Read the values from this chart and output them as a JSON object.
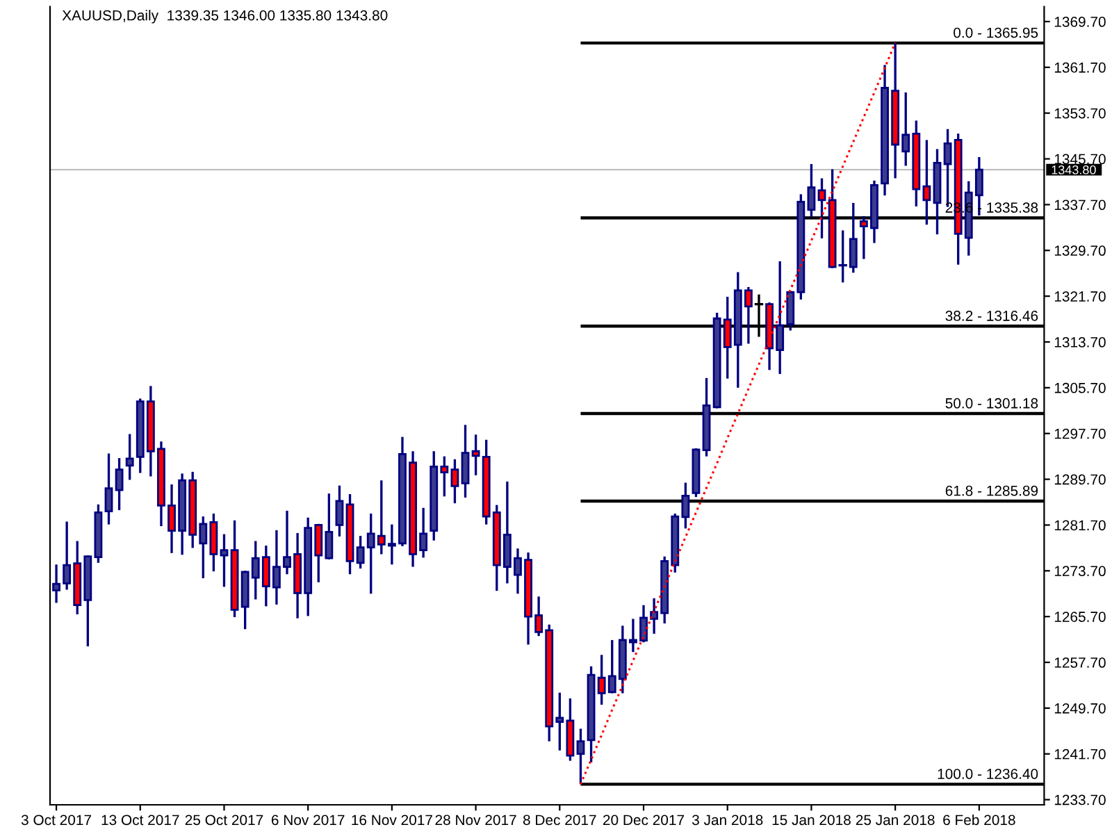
{
  "chart_data": {
    "type": "candlestick",
    "title": "XAUUSD,Daily  1339.35 1346.00 1335.80 1343.80",
    "categories": [
      "3 Oct 2017",
      null,
      null,
      null,
      null,
      null,
      null,
      null,
      "13 Oct 2017",
      null,
      null,
      null,
      null,
      null,
      null,
      null,
      "25 Oct 2017",
      null,
      null,
      null,
      null,
      null,
      null,
      null,
      "6 Nov 2017",
      null,
      null,
      null,
      null,
      null,
      null,
      null,
      "16 Nov 2017",
      null,
      null,
      null,
      null,
      null,
      null,
      null,
      "28 Nov 2017",
      null,
      null,
      null,
      null,
      null,
      null,
      null,
      "8 Dec 2017",
      null,
      null,
      null,
      null,
      null,
      null,
      null,
      "20 Dec 2017",
      null,
      null,
      null,
      null,
      null,
      null,
      null,
      "3 Jan 2018",
      null,
      null,
      null,
      null,
      null,
      null,
      null,
      "15 Jan 2018",
      null,
      null,
      null,
      null,
      null,
      null,
      null,
      "25 Jan 2018",
      null,
      null,
      null,
      null,
      null,
      null,
      null,
      "6 Feb 2018"
    ],
    "series": [
      {
        "color": "#000080",
        "colors": [
          "#3b3b8f",
          "#3b3b8f",
          "#ff0000",
          "#3b3b8f",
          "#3b3b8f",
          "#3b3b8f",
          "#3b3b8f",
          "#3b3b8f",
          "#3b3b8f",
          "#ff0000",
          "#ff0000",
          "#ff0000",
          "#3b3b8f",
          "#ff0000",
          "#3b3b8f",
          "#ff0000",
          "#3b3b8f",
          "#ff0000",
          "#3b3b8f",
          "#3b3b8f",
          "#ff0000",
          "#3b3b8f",
          "#3b3b8f",
          "#ff0000",
          "#3b3b8f",
          "#ff0000",
          "#3b3b8f",
          "#3b3b8f",
          "#ff0000",
          "#3b3b8f",
          "#3b3b8f",
          "#ff0000",
          "#3b3b8f",
          "#3b3b8f",
          "#ff0000",
          "#3b3b8f",
          "#3b3b8f",
          "#ff0000",
          "#ff0000",
          "#3b3b8f",
          "#ff0000",
          "#ff0000",
          "#ff0000",
          "#3b3b8f",
          "#3b3b8f",
          "#ff0000",
          "#ff0000",
          "#ff0000",
          "#3b3b8f",
          "#ff0000",
          "#3b3b8f",
          "#3b3b8f",
          "#ff0000",
          "#3b3b8f",
          "#3b3b8f",
          "#3b3b8f",
          "#3b3b8f",
          "#3b3b8f",
          "#3b3b8f",
          "#3b3b8f",
          "#3b3b8f",
          "#3b3b8f",
          "#3b3b8f",
          "#3b3b8f",
          "#ff0000",
          "#3b3b8f",
          "#ff0000",
          "#000000",
          "#ff0000",
          "#3b3b8f",
          "#3b3b8f",
          "#3b3b8f",
          "#3b3b8f",
          "#ff0000",
          "#ff0000",
          "#000080",
          "#3b3b8f",
          "#ff0000",
          "#3b3b8f",
          "#3b3b8f",
          "#ff0000",
          "#3b3b8f",
          "#ff0000",
          "#ff0000",
          "#3b3b8f",
          "#3b3b8f",
          "#ff0000",
          "#3b3b8f",
          "#3b3b8f"
        ],
        "ohlc": [
          [
            1270.3,
            1274.8,
            1268.1,
            1271.4
          ],
          [
            1271.5,
            1282.3,
            1270.4,
            1274.7
          ],
          [
            1275.0,
            1278.9,
            1266.1,
            1267.7
          ],
          [
            1268.6,
            1276.4,
            1260.5,
            1276.2
          ],
          [
            1276.1,
            1285.3,
            1275.1,
            1283.9
          ],
          [
            1284.1,
            1294.2,
            1281.8,
            1288.1
          ],
          [
            1287.8,
            1293.4,
            1284.3,
            1291.4
          ],
          [
            1292.1,
            1297.6,
            1289.6,
            1293.3
          ],
          [
            1293.6,
            1303.8,
            1290.8,
            1303.3
          ],
          [
            1303.3,
            1306.0,
            1290.2,
            1294.6
          ],
          [
            1295.0,
            1296.3,
            1281.5,
            1285.1
          ],
          [
            1285.1,
            1288.8,
            1276.8,
            1280.7
          ],
          [
            1280.7,
            1290.7,
            1276.5,
            1289.5
          ],
          [
            1289.5,
            1291.0,
            1277.7,
            1280.0
          ],
          [
            1278.5,
            1283.2,
            1272.4,
            1281.9
          ],
          [
            1282.2,
            1283.7,
            1273.6,
            1276.6
          ],
          [
            1276.4,
            1280.1,
            1270.9,
            1277.3
          ],
          [
            1277.3,
            1282.5,
            1265.6,
            1266.9
          ],
          [
            1267.4,
            1273.7,
            1263.5,
            1273.5
          ],
          [
            1272.5,
            1278.9,
            1268.7,
            1275.9
          ],
          [
            1276.1,
            1278.1,
            1267.5,
            1271.0
          ],
          [
            1270.8,
            1280.8,
            1267.8,
            1274.4
          ],
          [
            1274.4,
            1284.2,
            1273.1,
            1276.1
          ],
          [
            1276.6,
            1280.3,
            1265.4,
            1269.8
          ],
          [
            1269.8,
            1283.0,
            1265.8,
            1281.2
          ],
          [
            1281.7,
            1281.9,
            1271.7,
            1276.4
          ],
          [
            1275.9,
            1287.2,
            1275.7,
            1280.5
          ],
          [
            1281.7,
            1288.6,
            1279.7,
            1285.9
          ],
          [
            1285.3,
            1287.1,
            1273.1,
            1275.4
          ],
          [
            1275.1,
            1279.8,
            1274.1,
            1277.8
          ],
          [
            1277.8,
            1283.7,
            1269.7,
            1280.2
          ],
          [
            1279.8,
            1289.5,
            1276.6,
            1278.3
          ],
          [
            1278.1,
            1281.8,
            1274.8,
            1278.4
          ],
          [
            1278.5,
            1297.1,
            1278.0,
            1294.1
          ],
          [
            1292.6,
            1294.6,
            1274.4,
            1276.6
          ],
          [
            1277.3,
            1284.7,
            1276.0,
            1280.2
          ],
          [
            1280.7,
            1294.6,
            1279.0,
            1291.9
          ],
          [
            1291.9,
            1293.7,
            1286.7,
            1290.9
          ],
          [
            1291.4,
            1293.2,
            1285.5,
            1288.5
          ],
          [
            1289.0,
            1299.2,
            1286.5,
            1294.3
          ],
          [
            1294.6,
            1297.5,
            1290.4,
            1293.8
          ],
          [
            1293.6,
            1296.6,
            1281.8,
            1283.2
          ],
          [
            1283.9,
            1285.2,
            1270.2,
            1274.7
          ],
          [
            1274.4,
            1289.3,
            1271.5,
            1280.0
          ],
          [
            1273.0,
            1277.6,
            1269.7,
            1275.9
          ],
          [
            1275.6,
            1276.9,
            1260.8,
            1265.7
          ],
          [
            1265.9,
            1269.2,
            1262.3,
            1263.0
          ],
          [
            1263.3,
            1264.3,
            1243.9,
            1246.5
          ],
          [
            1247.3,
            1252.4,
            1242.3,
            1248.0
          ],
          [
            1247.5,
            1251.4,
            1240.5,
            1241.4
          ],
          [
            1241.7,
            1246.1,
            1236.4,
            1243.9
          ],
          [
            1244.1,
            1257.0,
            1240.2,
            1255.5
          ],
          [
            1255.0,
            1259.0,
            1250.3,
            1252.3
          ],
          [
            1252.5,
            1261.6,
            1252.3,
            1255.3
          ],
          [
            1254.8,
            1264.1,
            1252.3,
            1261.6
          ],
          [
            1261.2,
            1265.3,
            1259.5,
            1261.6
          ],
          [
            1261.5,
            1267.7,
            1261.2,
            1265.5
          ],
          [
            1265.3,
            1268.9,
            1262.7,
            1266.5
          ],
          [
            1266.3,
            1276.2,
            1264.5,
            1275.4
          ],
          [
            1274.7,
            1283.7,
            1273.4,
            1283.2
          ],
          [
            1283.1,
            1289.1,
            1281.1,
            1286.8
          ],
          [
            1287.3,
            1295.1,
            1286.6,
            1294.9
          ],
          [
            1294.8,
            1307.4,
            1293.7,
            1302.6
          ],
          [
            1302.3,
            1318.8,
            1302.1,
            1317.8
          ],
          [
            1317.6,
            1321.6,
            1307.3,
            1312.8
          ],
          [
            1313.2,
            1325.9,
            1305.7,
            1322.7
          ],
          [
            1322.7,
            1323.3,
            1313.4,
            1319.9
          ],
          [
            1320.3,
            1322.0,
            1314.6,
            1320.3
          ],
          [
            1320.3,
            1320.6,
            1308.8,
            1312.6
          ],
          [
            1312.3,
            1327.8,
            1308.1,
            1316.6
          ],
          [
            1316.8,
            1322.6,
            1315.7,
            1322.4
          ],
          [
            1322.4,
            1339.5,
            1321.1,
            1338.2
          ],
          [
            1336.8,
            1344.8,
            1335.5,
            1340.7
          ],
          [
            1340.2,
            1342.3,
            1331.8,
            1338.5
          ],
          [
            1338.5,
            1343.9,
            1326.6,
            1326.8
          ],
          [
            1327.1,
            1333.2,
            1324.1,
            1327.1
          ],
          [
            1326.8,
            1338.0,
            1325.8,
            1331.7
          ],
          [
            1334.8,
            1335.7,
            1328.2,
            1333.9
          ],
          [
            1333.6,
            1341.9,
            1331.0,
            1341.1
          ],
          [
            1341.4,
            1362.1,
            1339.3,
            1358.1
          ],
          [
            1357.6,
            1366.0,
            1342.3,
            1348.2
          ],
          [
            1347.0,
            1357.3,
            1344.5,
            1349.9
          ],
          [
            1350.1,
            1352.4,
            1337.4,
            1340.4
          ],
          [
            1340.9,
            1349.0,
            1334.2,
            1338.5
          ],
          [
            1338.0,
            1347.4,
            1332.5,
            1345.0
          ],
          [
            1344.8,
            1350.9,
            1337.3,
            1348.4
          ],
          [
            1349.0,
            1350.1,
            1327.2,
            1332.6
          ],
          [
            1331.9,
            1341.8,
            1328.8,
            1339.8
          ],
          [
            1339.35,
            1346.0,
            1335.8,
            1343.8
          ]
        ]
      },
      {
        "type": "line",
        "color": "#ff0000",
        "line_style": "dotted",
        "values": [
          null,
          null,
          null,
          null,
          null,
          null,
          null,
          null,
          null,
          null,
          null,
          null,
          null,
          null,
          null,
          null,
          null,
          null,
          null,
          null,
          null,
          null,
          null,
          null,
          null,
          null,
          null,
          null,
          null,
          null,
          null,
          null,
          null,
          null,
          null,
          null,
          null,
          null,
          null,
          null,
          null,
          null,
          null,
          null,
          null,
          null,
          null,
          null,
          null,
          null,
          1236.4,
          1240.7,
          1245.0,
          1249.4,
          1253.7,
          1258.0,
          1262.3,
          1266.6,
          1271.0,
          1275.3,
          1279.6,
          1283.9,
          1288.2,
          1292.5,
          1296.9,
          1301.2,
          1305.5,
          1309.8,
          1314.1,
          1318.5,
          1322.8,
          1327.1,
          1331.4,
          1335.7,
          1340.0,
          1344.4,
          1348.7,
          1353.0,
          1357.3,
          1361.6,
          1366.0,
          null,
          null,
          null,
          null,
          null,
          null,
          null,
          null
        ]
      }
    ],
    "ylim": [
      1232.8,
      1372.3
    ],
    "yticks": [
      {
        "value": 1233.7,
        "label": "1233.70"
      },
      {
        "value": 1241.7,
        "label": "1241.70"
      },
      {
        "value": 1249.7,
        "label": "1249.70"
      },
      {
        "value": 1257.7,
        "label": "1257.70"
      },
      {
        "value": 1265.7,
        "label": "1265.70"
      },
      {
        "value": 1273.7,
        "label": "1273.70"
      },
      {
        "value": 1281.7,
        "label": "1281.70"
      },
      {
        "value": 1289.7,
        "label": "1289.70"
      },
      {
        "value": 1297.7,
        "label": "1297.70"
      },
      {
        "value": 1305.7,
        "label": "1305.70"
      },
      {
        "value": 1313.7,
        "label": "1313.70"
      },
      {
        "value": 1321.7,
        "label": "1321.70"
      },
      {
        "value": 1329.7,
        "label": "1329.70"
      },
      {
        "value": 1337.7,
        "label": "1337.70"
      },
      {
        "value": 1345.7,
        "label": "1345.70"
      },
      {
        "value": 1353.7,
        "label": "1353.70"
      },
      {
        "value": 1361.7,
        "label": "1361.70"
      },
      {
        "value": 1369.7,
        "label": "1369.70"
      }
    ],
    "ref_lines": [
      {
        "axis": "y",
        "value": 1343.8,
        "label": "1343.80",
        "color": "#c0c0c0"
      },
      {
        "axis": "y",
        "value": 1365.95,
        "color": "#000000"
      },
      {
        "axis": "y",
        "value": 1335.38,
        "color": "#000000"
      },
      {
        "axis": "y",
        "value": 1316.46,
        "color": "#000000"
      },
      {
        "axis": "y",
        "value": 1301.18,
        "color": "#000000"
      },
      {
        "axis": "y",
        "value": 1285.89,
        "color": "#000000"
      },
      {
        "axis": "y",
        "value": 1236.4,
        "color": "#000000"
      }
    ],
    "annotations": [
      {
        "text": "0.0 - 1365.95",
        "y": 1365.95
      },
      {
        "text": "23.6 - 1335.38",
        "y": 1335.38
      },
      {
        "text": "38.2 - 1316.46",
        "y": 1316.46
      },
      {
        "text": "50.0 - 1301.18",
        "y": 1301.18
      },
      {
        "text": "61.8 - 1285.89",
        "y": 1285.89
      },
      {
        "text": "100.0 - 1236.40",
        "y": 1236.4
      }
    ]
  }
}
